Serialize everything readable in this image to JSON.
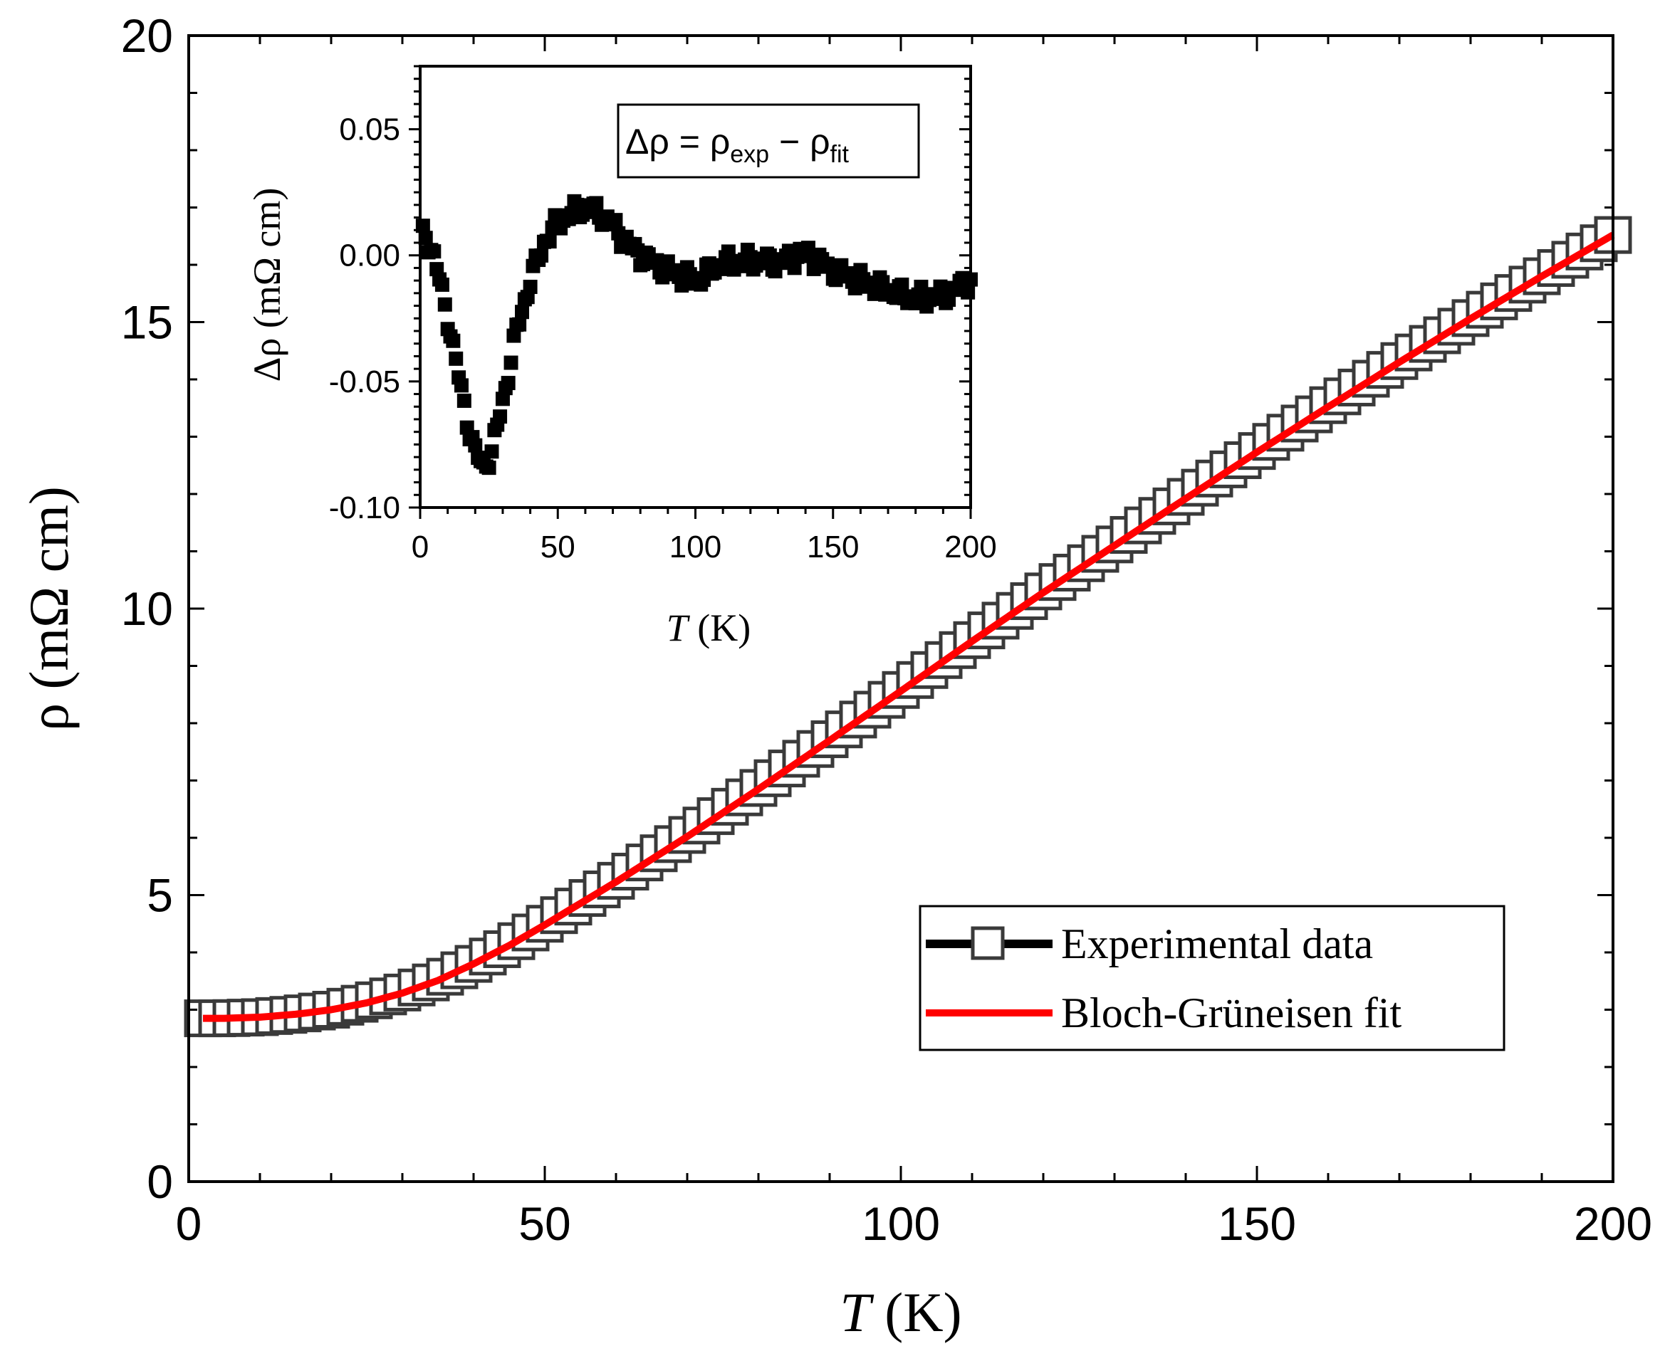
{
  "chart_data": [
    {
      "name": "main",
      "type": "line",
      "xlabel": "T",
      "xlabel_unit": "(K)",
      "ylabel": "ρ (mΩ cm)",
      "xlim": [
        0,
        200
      ],
      "ylim": [
        0,
        20
      ],
      "xticks": [
        "0",
        "50",
        "100",
        "150",
        "200"
      ],
      "yticks": [
        "0",
        "5",
        "10",
        "15",
        "20"
      ],
      "legend_position": "bottom-right",
      "series": [
        {
          "name": "Experimental data",
          "marker": "open-square",
          "color": "#3a3a3a",
          "x": [
            2,
            5,
            10,
            15,
            20,
            25,
            30,
            35,
            40,
            45,
            50,
            60,
            70,
            80,
            90,
            100,
            110,
            120,
            130,
            140,
            150,
            160,
            170,
            180,
            190,
            200
          ],
          "y": [
            2.85,
            2.85,
            2.87,
            2.92,
            3.0,
            3.13,
            3.3,
            3.52,
            3.8,
            4.12,
            4.5,
            5.25,
            6.05,
            6.87,
            7.72,
            8.58,
            9.45,
            10.3,
            11.12,
            11.95,
            12.75,
            13.55,
            14.32,
            15.07,
            15.8,
            16.52
          ]
        },
        {
          "name": "Bloch-Grüneisen fit",
          "marker": "line",
          "color": "#ff0000",
          "x": [
            2,
            5,
            10,
            15,
            20,
            25,
            30,
            35,
            40,
            45,
            50,
            60,
            70,
            80,
            90,
            100,
            110,
            120,
            130,
            140,
            150,
            160,
            170,
            180,
            190,
            200
          ],
          "y": [
            2.85,
            2.85,
            2.87,
            2.92,
            3.0,
            3.12,
            3.29,
            3.51,
            3.8,
            4.12,
            4.48,
            5.23,
            6.02,
            6.85,
            7.7,
            8.56,
            9.43,
            10.28,
            11.1,
            11.92,
            12.73,
            13.52,
            14.3,
            15.06,
            15.8,
            16.52
          ]
        }
      ]
    },
    {
      "name": "inset",
      "type": "line",
      "xlabel": "T",
      "xlabel_unit": "(K)",
      "ylabel": "Δρ (mΩ cm)",
      "annotation": {
        "base": "Δρ = ρ",
        "sub1": "exp",
        "mid": " − ρ",
        "sub2": "fit"
      },
      "xlim": [
        0,
        200
      ],
      "ylim": [
        -0.1,
        0.075
      ],
      "xticks": [
        "0",
        "50",
        "100",
        "150",
        "200"
      ],
      "yticks": [
        "-0.10",
        "-0.05",
        "0.00",
        "0.05"
      ],
      "series": [
        {
          "name": "Δρ",
          "color": "#000000",
          "x": [
            2,
            5,
            8,
            11,
            14,
            17,
            20,
            23,
            26,
            30,
            35,
            40,
            45,
            50,
            55,
            60,
            65,
            70,
            75,
            80,
            90,
            100,
            110,
            120,
            130,
            140,
            150,
            160,
            170,
            180,
            190,
            200
          ],
          "y": [
            0.008,
            0.0,
            -0.015,
            -0.03,
            -0.048,
            -0.065,
            -0.078,
            -0.084,
            -0.078,
            -0.058,
            -0.03,
            -0.01,
            0.005,
            0.013,
            0.017,
            0.019,
            0.017,
            0.012,
            0.005,
            0.0,
            -0.006,
            -0.01,
            -0.003,
            -0.002,
            -0.003,
            0.001,
            -0.006,
            -0.01,
            -0.014,
            -0.017,
            -0.016,
            -0.01
          ]
        }
      ]
    }
  ]
}
